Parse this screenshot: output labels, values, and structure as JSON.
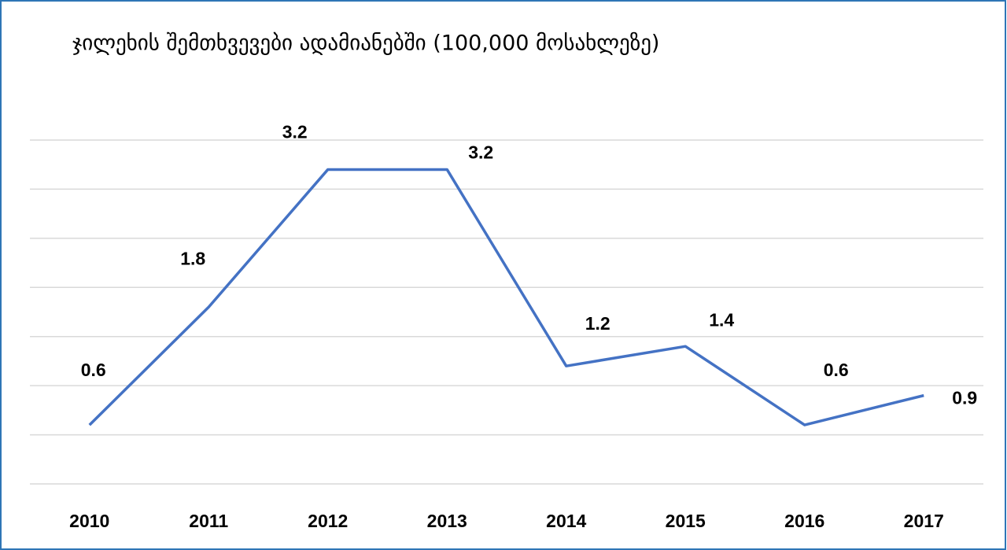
{
  "chart_data": {
    "type": "line",
    "title": "ჯილეხის შემთხვევები ადამიანებში (100,000 მოსახლეზე)",
    "categories": [
      "2010",
      "2011",
      "2012",
      "2013",
      "2014",
      "2015",
      "2016",
      "2017"
    ],
    "series": [
      {
        "name": "ჯილეხის შემთხვევები",
        "color": "#4472c4",
        "values": [
          0.6,
          1.8,
          3.2,
          3.2,
          1.2,
          1.4,
          0.6,
          0.9
        ]
      }
    ],
    "ylim": [
      0,
      3.5
    ],
    "yticks": [
      0,
      0.5,
      1,
      1.5,
      2,
      2.5,
      3,
      3.5
    ],
    "grid": true
  }
}
